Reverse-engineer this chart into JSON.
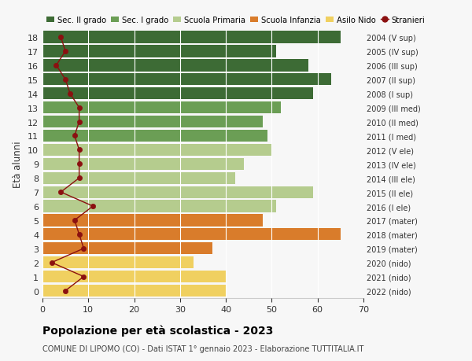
{
  "ages": [
    18,
    17,
    16,
    15,
    14,
    13,
    12,
    11,
    10,
    9,
    8,
    7,
    6,
    5,
    4,
    3,
    2,
    1,
    0
  ],
  "labels_right": [
    "2004 (V sup)",
    "2005 (IV sup)",
    "2006 (III sup)",
    "2007 (II sup)",
    "2008 (I sup)",
    "2009 (III med)",
    "2010 (II med)",
    "2011 (I med)",
    "2012 (V ele)",
    "2013 (IV ele)",
    "2014 (III ele)",
    "2015 (II ele)",
    "2016 (I ele)",
    "2017 (mater)",
    "2018 (mater)",
    "2019 (mater)",
    "2020 (nido)",
    "2021 (nido)",
    "2022 (nido)"
  ],
  "bar_values": [
    65,
    51,
    58,
    63,
    59,
    52,
    48,
    49,
    50,
    44,
    42,
    59,
    51,
    48,
    65,
    37,
    33,
    40,
    40
  ],
  "bar_colors": [
    "#3d6b35",
    "#3d6b35",
    "#3d6b35",
    "#3d6b35",
    "#3d6b35",
    "#6b9e55",
    "#6b9e55",
    "#6b9e55",
    "#b5cc8e",
    "#b5cc8e",
    "#b5cc8e",
    "#b5cc8e",
    "#b5cc8e",
    "#d97c2b",
    "#d97c2b",
    "#d97c2b",
    "#f0d060",
    "#f0d060",
    "#f0d060"
  ],
  "stranieri_values": [
    4,
    5,
    3,
    5,
    6,
    8,
    8,
    7,
    8,
    8,
    8,
    4,
    11,
    7,
    8,
    9,
    2,
    9,
    5
  ],
  "legend_labels": [
    "Sec. II grado",
    "Sec. I grado",
    "Scuola Primaria",
    "Scuola Infanzia",
    "Asilo Nido",
    "Stranieri"
  ],
  "legend_colors": [
    "#3d6b35",
    "#6b9e55",
    "#b5cc8e",
    "#d97c2b",
    "#f0d060",
    "#8b1010"
  ],
  "ylabel_left": "Età alunni",
  "title": "Popolazione per età scolastica - 2023",
  "subtitle": "COMUNE DI LIPOMO (CO) - Dati ISTAT 1° gennaio 2023 - Elaborazione TUTTITALIA.IT",
  "xlim": [
    0,
    70
  ],
  "background_color": "#f7f7f7"
}
